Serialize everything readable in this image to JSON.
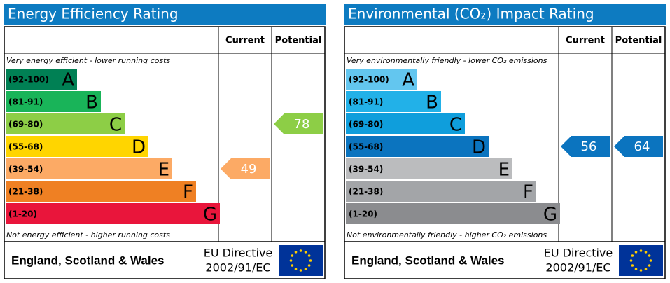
{
  "panels": [
    {
      "title": "Energy Efficiency Rating",
      "current_header": "Current",
      "potential_header": "Potential",
      "top_note": "Very energy efficient - lower running costs",
      "bottom_note": "Not energy efficient - higher running costs",
      "bands": [
        {
          "range": "(92-100)",
          "letter": "A",
          "color": "#008054"
        },
        {
          "range": "(81-91)",
          "letter": "B",
          "color": "#19b459"
        },
        {
          "range": "(69-80)",
          "letter": "C",
          "color": "#8dce46"
        },
        {
          "range": "(55-68)",
          "letter": "D",
          "color": "#ffd500"
        },
        {
          "range": "(39-54)",
          "letter": "E",
          "color": "#fcaa65"
        },
        {
          "range": "(21-38)",
          "letter": "F",
          "color": "#ef8023"
        },
        {
          "range": "(1-20)",
          "letter": "G",
          "color": "#e9153b"
        }
      ],
      "current": 49,
      "potential": 78,
      "region": "England, Scotland & Wales",
      "directive_line1": "EU Directive",
      "directive_line2": "2002/91/EC"
    },
    {
      "title": "Environmental (CO₂) Impact Rating",
      "current_header": "Current",
      "potential_header": "Potential",
      "top_note": "Very environmentally friendly - lower CO₂ emissions",
      "bottom_note": "Not environmentally friendly - higher CO₂ emissions",
      "bands": [
        {
          "range": "(92-100)",
          "letter": "A",
          "color": "#63c6ef"
        },
        {
          "range": "(81-91)",
          "letter": "B",
          "color": "#22b1e8"
        },
        {
          "range": "(69-80)",
          "letter": "C",
          "color": "#0f9edc"
        },
        {
          "range": "(55-68)",
          "letter": "D",
          "color": "#0b74bf"
        },
        {
          "range": "(39-54)",
          "letter": "E",
          "color": "#bbbcbe"
        },
        {
          "range": "(21-38)",
          "letter": "F",
          "color": "#a3a5a8"
        },
        {
          "range": "(1-20)",
          "letter": "G",
          "color": "#8b8c8f"
        }
      ],
      "current": 56,
      "potential": 64,
      "region": "England, Scotland & Wales",
      "directive_line1": "EU Directive",
      "directive_line2": "2002/91/EC"
    }
  ]
}
